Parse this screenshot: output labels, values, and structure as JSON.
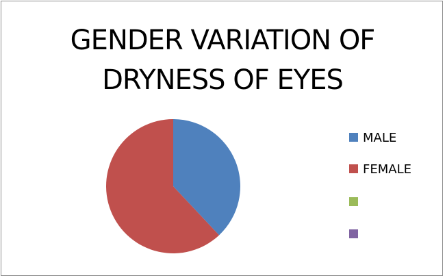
{
  "chart_data": {
    "type": "pie",
    "title": "GENDER VARIATION OF DRYNESS OF EYES",
    "categories": [
      "MALE",
      "FEMALE",
      null,
      null
    ],
    "values": [
      38,
      62,
      0,
      0
    ],
    "colors": [
      "#4f81bd",
      "#c0504d",
      "#9bbb59",
      "#8064a2"
    ],
    "legend": "right"
  }
}
